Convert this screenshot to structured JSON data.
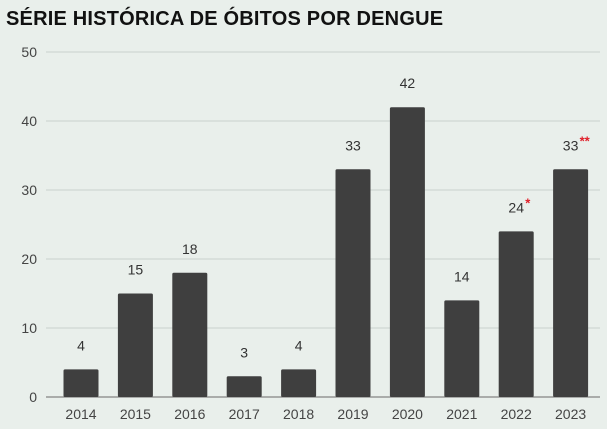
{
  "chart_data": {
    "type": "bar",
    "title": "SÉRIE HISTÓRICA DE ÓBITOS POR DENGUE",
    "xlabel": "",
    "ylabel": "",
    "categories": [
      "2014",
      "2015",
      "2016",
      "2017",
      "2018",
      "2019",
      "2020",
      "2021",
      "2022",
      "2023"
    ],
    "values": [
      4,
      15,
      18,
      3,
      4,
      33,
      42,
      14,
      24,
      33
    ],
    "value_markers": [
      "",
      "",
      "",
      "",
      "",
      "",
      "",
      "",
      "*",
      "**"
    ],
    "ylim": [
      0,
      50
    ],
    "yticks": [
      0,
      10,
      20,
      30,
      40,
      50
    ],
    "grid": true,
    "colors": {
      "bar": "#3f3f3f",
      "grid": "#c9d2cd",
      "marker": "#e0202a",
      "background": "#e9efeb"
    }
  }
}
